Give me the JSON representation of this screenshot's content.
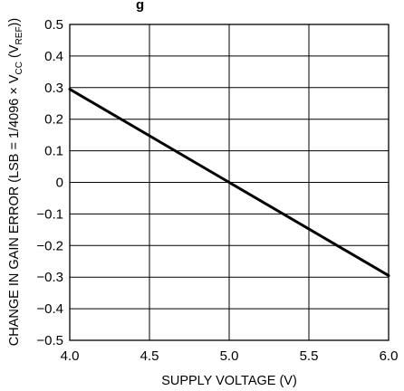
{
  "chart_data": {
    "type": "line",
    "title_fragment": "g",
    "xlabel": "SUPPLY VOLTAGE (V)",
    "ylabel": {
      "pre": "CHANGE IN GAIN ERROR (LSB = 1/4096 × V",
      "sub1": "CC",
      "mid": " (V",
      "sub2": "REF",
      "post": "))"
    },
    "xlim": [
      4.0,
      6.0
    ],
    "ylim": [
      -0.5,
      0.5
    ],
    "x_ticks": [
      {
        "value": 4.0,
        "label": "4.0"
      },
      {
        "value": 4.5,
        "label": "4.5"
      },
      {
        "value": 5.0,
        "label": "5.0"
      },
      {
        "value": 5.5,
        "label": "5.5"
      },
      {
        "value": 6.0,
        "label": "6.0"
      }
    ],
    "y_ticks": [
      {
        "value": 0.5,
        "label": "0.5"
      },
      {
        "value": 0.4,
        "label": "0.4"
      },
      {
        "value": 0.3,
        "label": "0.3"
      },
      {
        "value": 0.2,
        "label": "0.2"
      },
      {
        "value": 0.1,
        "label": "0.1"
      },
      {
        "value": 0.0,
        "label": "0"
      },
      {
        "value": -0.1,
        "label": "−0.1"
      },
      {
        "value": -0.2,
        "label": "−0.2"
      },
      {
        "value": -0.3,
        "label": "−0.3"
      },
      {
        "value": -0.4,
        "label": "−0.4"
      },
      {
        "value": -0.5,
        "label": "−0.5"
      }
    ],
    "grid": true,
    "series": [
      {
        "x": [
          4.0,
          5.0,
          6.0
        ],
        "y": [
          0.295,
          0.0,
          -0.295
        ],
        "color": "#000000"
      }
    ]
  }
}
